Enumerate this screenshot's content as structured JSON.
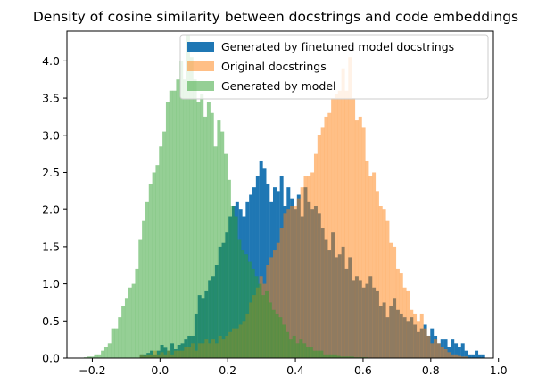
{
  "chart_data": {
    "type": "histogram",
    "title": "Density of cosine similarity between docstrings and code embeddings",
    "xlabel": "",
    "ylabel": "",
    "xlim": [
      -0.275,
      0.985
    ],
    "ylim": [
      0,
      4.4
    ],
    "xticks": [
      -0.2,
      0.0,
      0.2,
      0.4,
      0.6,
      0.8,
      1.0
    ],
    "xtick_labels": [
      "−0.2",
      "0.0",
      "0.2",
      "0.4",
      "0.6",
      "0.8",
      "1.0"
    ],
    "yticks": [
      0.0,
      0.5,
      1.0,
      1.5,
      2.0,
      2.5,
      3.0,
      3.5,
      4.0
    ],
    "ytick_labels": [
      "0.0",
      "0.5",
      "1.0",
      "1.5",
      "2.0",
      "2.5",
      "3.0",
      "3.5",
      "4.0"
    ],
    "grid": false,
    "legend_position": "top-right",
    "series": [
      {
        "name": "Generated by finetuned model docstrings",
        "color": "#1f77b4",
        "opacity": 1.0,
        "bin_start": -0.06,
        "bin_width": 0.0101,
        "values": [
          0.05,
          0.05,
          0.07,
          0.1,
          0.05,
          0.1,
          0.18,
          0.14,
          0.1,
          0.2,
          0.12,
          0.18,
          0.2,
          0.25,
          0.3,
          0.3,
          0.6,
          0.85,
          0.8,
          0.9,
          1.05,
          1.1,
          1.25,
          1.5,
          1.55,
          1.7,
          1.9,
          2.05,
          2.1,
          2.0,
          1.9,
          2.1,
          2.2,
          2.3,
          2.45,
          2.65,
          2.55,
          2.35,
          2.1,
          2.3,
          2.25,
          2.45,
          2.05,
          2.3,
          2.15,
          2.0,
          2.2,
          1.9,
          2.3,
          2.1,
          2.0,
          2.05,
          1.95,
          1.75,
          1.6,
          1.45,
          1.7,
          1.35,
          1.4,
          1.5,
          1.2,
          1.35,
          1.05,
          1.1,
          1.05,
          0.95,
          1.0,
          1.1,
          0.95,
          0.9,
          0.7,
          0.75,
          0.55,
          0.7,
          0.8,
          0.65,
          0.6,
          0.55,
          0.5,
          0.55,
          0.45,
          0.35,
          0.4,
          0.45,
          0.3,
          0.4,
          0.3,
          0.2,
          0.25,
          0.25,
          0.15,
          0.25,
          0.2,
          0.15,
          0.2,
          0.1,
          0.05,
          0.05,
          0.1,
          0.05,
          0.05
        ]
      },
      {
        "name": "Original docstrings",
        "color": "#ff7f0e",
        "opacity": 0.5,
        "bin_start": -0.06,
        "bin_width": 0.0101,
        "values": [
          0.05,
          0.03,
          0.05,
          0.05,
          0.1,
          0.05,
          0.08,
          0.05,
          0.1,
          0.05,
          0.1,
          0.1,
          0.1,
          0.15,
          0.15,
          0.2,
          0.1,
          0.2,
          0.2,
          0.25,
          0.2,
          0.25,
          0.2,
          0.3,
          0.25,
          0.3,
          0.35,
          0.4,
          0.4,
          0.45,
          0.5,
          0.6,
          0.75,
          0.85,
          0.95,
          1.1,
          1.0,
          1.25,
          1.35,
          1.45,
          1.55,
          1.75,
          1.95,
          2.0,
          2.05,
          2.05,
          2.15,
          2.3,
          2.45,
          2.45,
          2.5,
          2.75,
          3.0,
          3.1,
          3.25,
          3.3,
          3.5,
          3.55,
          3.6,
          3.9,
          3.6,
          4.05,
          3.5,
          3.2,
          3.25,
          3.1,
          2.65,
          2.45,
          2.5,
          2.25,
          2.05,
          2.0,
          1.85,
          1.55,
          1.5,
          1.2,
          1.15,
          0.95,
          0.9,
          0.65,
          0.6,
          0.5,
          0.6,
          0.4,
          0.3,
          0.2,
          0.25,
          0.2,
          0.15,
          0.12,
          0.08,
          0.05,
          0.05,
          0.03,
          0.02,
          0.02,
          0.0,
          0.0,
          0.0,
          0.0,
          0.0
        ]
      },
      {
        "name": "Generated by model",
        "color": "#2ca02c",
        "opacity": 0.5,
        "bin_start": -0.225,
        "bin_width": 0.0101,
        "values": [
          0.01,
          0.02,
          0.02,
          0.05,
          0.05,
          0.1,
          0.15,
          0.2,
          0.4,
          0.4,
          0.55,
          0.7,
          0.8,
          0.95,
          1.0,
          1.2,
          1.6,
          1.85,
          2.1,
          2.35,
          2.5,
          2.6,
          2.85,
          3.05,
          3.45,
          3.6,
          3.6,
          3.75,
          4.0,
          3.75,
          4.35,
          4.05,
          3.75,
          3.45,
          3.55,
          3.25,
          3.45,
          3.3,
          2.85,
          3.2,
          3.05,
          2.75,
          2.4,
          2.05,
          1.9,
          1.6,
          1.45,
          1.4,
          1.3,
          1.2,
          1.1,
          1.0,
          0.85,
          0.9,
          0.75,
          0.65,
          0.6,
          0.55,
          0.45,
          0.35,
          0.25,
          0.3,
          0.2,
          0.25,
          0.2,
          0.15,
          0.15,
          0.1,
          0.1,
          0.1,
          0.05,
          0.05,
          0.05,
          0.05,
          0.03,
          0.02,
          0.02,
          0.02,
          0.02,
          0.01,
          0.01,
          0.01,
          0.01,
          0.0,
          0.0,
          0.0,
          0.0,
          0.0,
          0.0,
          0.0,
          0.0,
          0.0,
          0.0,
          0.0,
          0.0,
          0.0,
          0.0,
          0.0,
          0.0,
          0.0,
          0.0
        ]
      }
    ]
  }
}
